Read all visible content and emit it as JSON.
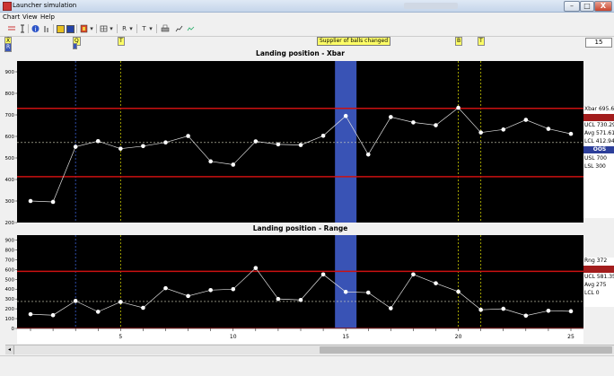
{
  "window": {
    "title": "Launcher simulation",
    "minimize": "–",
    "maximize": "□",
    "close": "X"
  },
  "menu": [
    "Chart",
    "View",
    "Help"
  ],
  "toolbar": {
    "r_label": "R",
    "t_label": "T",
    "dropdown_arrow": "▾"
  },
  "markers": {
    "top_left_label": "X̄",
    "top_left_sub": "R",
    "marker_3": "Q",
    "marker_5": "T",
    "marker_20": "B",
    "marker_21": "T",
    "annotation": "Supplier of balls changed"
  },
  "sample_count": "15",
  "xbar_panel": {
    "stat_xbar": "Xbar  695.6",
    "stat_ucl": "UCL  730.29",
    "stat_avg": "Avg  571.61",
    "stat_lcl": "LCL  412.94",
    "ooc_badge": "OOS",
    "stat_usl": "USL  700",
    "stat_lsl": "LSL  300"
  },
  "range_panel": {
    "stat_rng": "Rng  372",
    "stat_ucl": "UCL  581.35",
    "stat_avg": "Avg  275",
    "stat_lcl": "LCL  0"
  },
  "colors": {
    "plot_bg": "#000000",
    "limit_line": "#cc1111",
    "avg_line": "#d8d8c0",
    "series_line": "#e0e0e0",
    "highlight_band": "#3953b5",
    "event_line": "#c8c800",
    "event_line_blue": "#3a5fd0"
  },
  "chart_data": [
    {
      "type": "line",
      "title": "Landing position  - Xbar",
      "x": [
        1,
        2,
        3,
        4,
        5,
        6,
        7,
        8,
        9,
        10,
        11,
        12,
        13,
        14,
        15,
        16,
        17,
        18,
        19,
        20,
        21,
        22,
        23,
        24,
        25
      ],
      "series": [
        {
          "values": [
            300,
            296,
            552,
            578,
            543,
            555,
            572,
            602,
            484,
            469,
            577,
            563,
            560,
            603,
            695,
            516,
            690,
            665,
            652,
            733,
            618,
            632,
            677,
            635,
            612
          ]
        }
      ],
      "ucl": 730.29,
      "avg": 571.61,
      "lcl": 412.94,
      "ylim": [
        200,
        950
      ],
      "yticks": [
        200,
        300,
        400,
        500,
        600,
        700,
        800,
        900
      ],
      "highlight_sample": 15,
      "event_samples": [
        3,
        5,
        20,
        21
      ]
    },
    {
      "type": "line",
      "title": "Landing position  - Range",
      "x": [
        1,
        2,
        3,
        4,
        5,
        6,
        7,
        8,
        9,
        10,
        11,
        12,
        13,
        14,
        15,
        16,
        17,
        18,
        19,
        20,
        21,
        22,
        23,
        24,
        25
      ],
      "series": [
        {
          "values": [
            145,
            135,
            280,
            170,
            270,
            210,
            410,
            330,
            390,
            400,
            615,
            300,
            290,
            550,
            372,
            365,
            205,
            550,
            460,
            375,
            190,
            200,
            130,
            180,
            175
          ]
        }
      ],
      "ucl": 581.35,
      "avg": 275,
      "lcl": 0,
      "ylim": [
        0,
        950
      ],
      "yticks": [
        0,
        100,
        200,
        300,
        400,
        500,
        600,
        700,
        800,
        900
      ],
      "xticks": [
        5,
        10,
        15,
        20,
        25
      ],
      "highlight_sample": 15,
      "event_samples": [
        3,
        5,
        20,
        21
      ]
    }
  ]
}
